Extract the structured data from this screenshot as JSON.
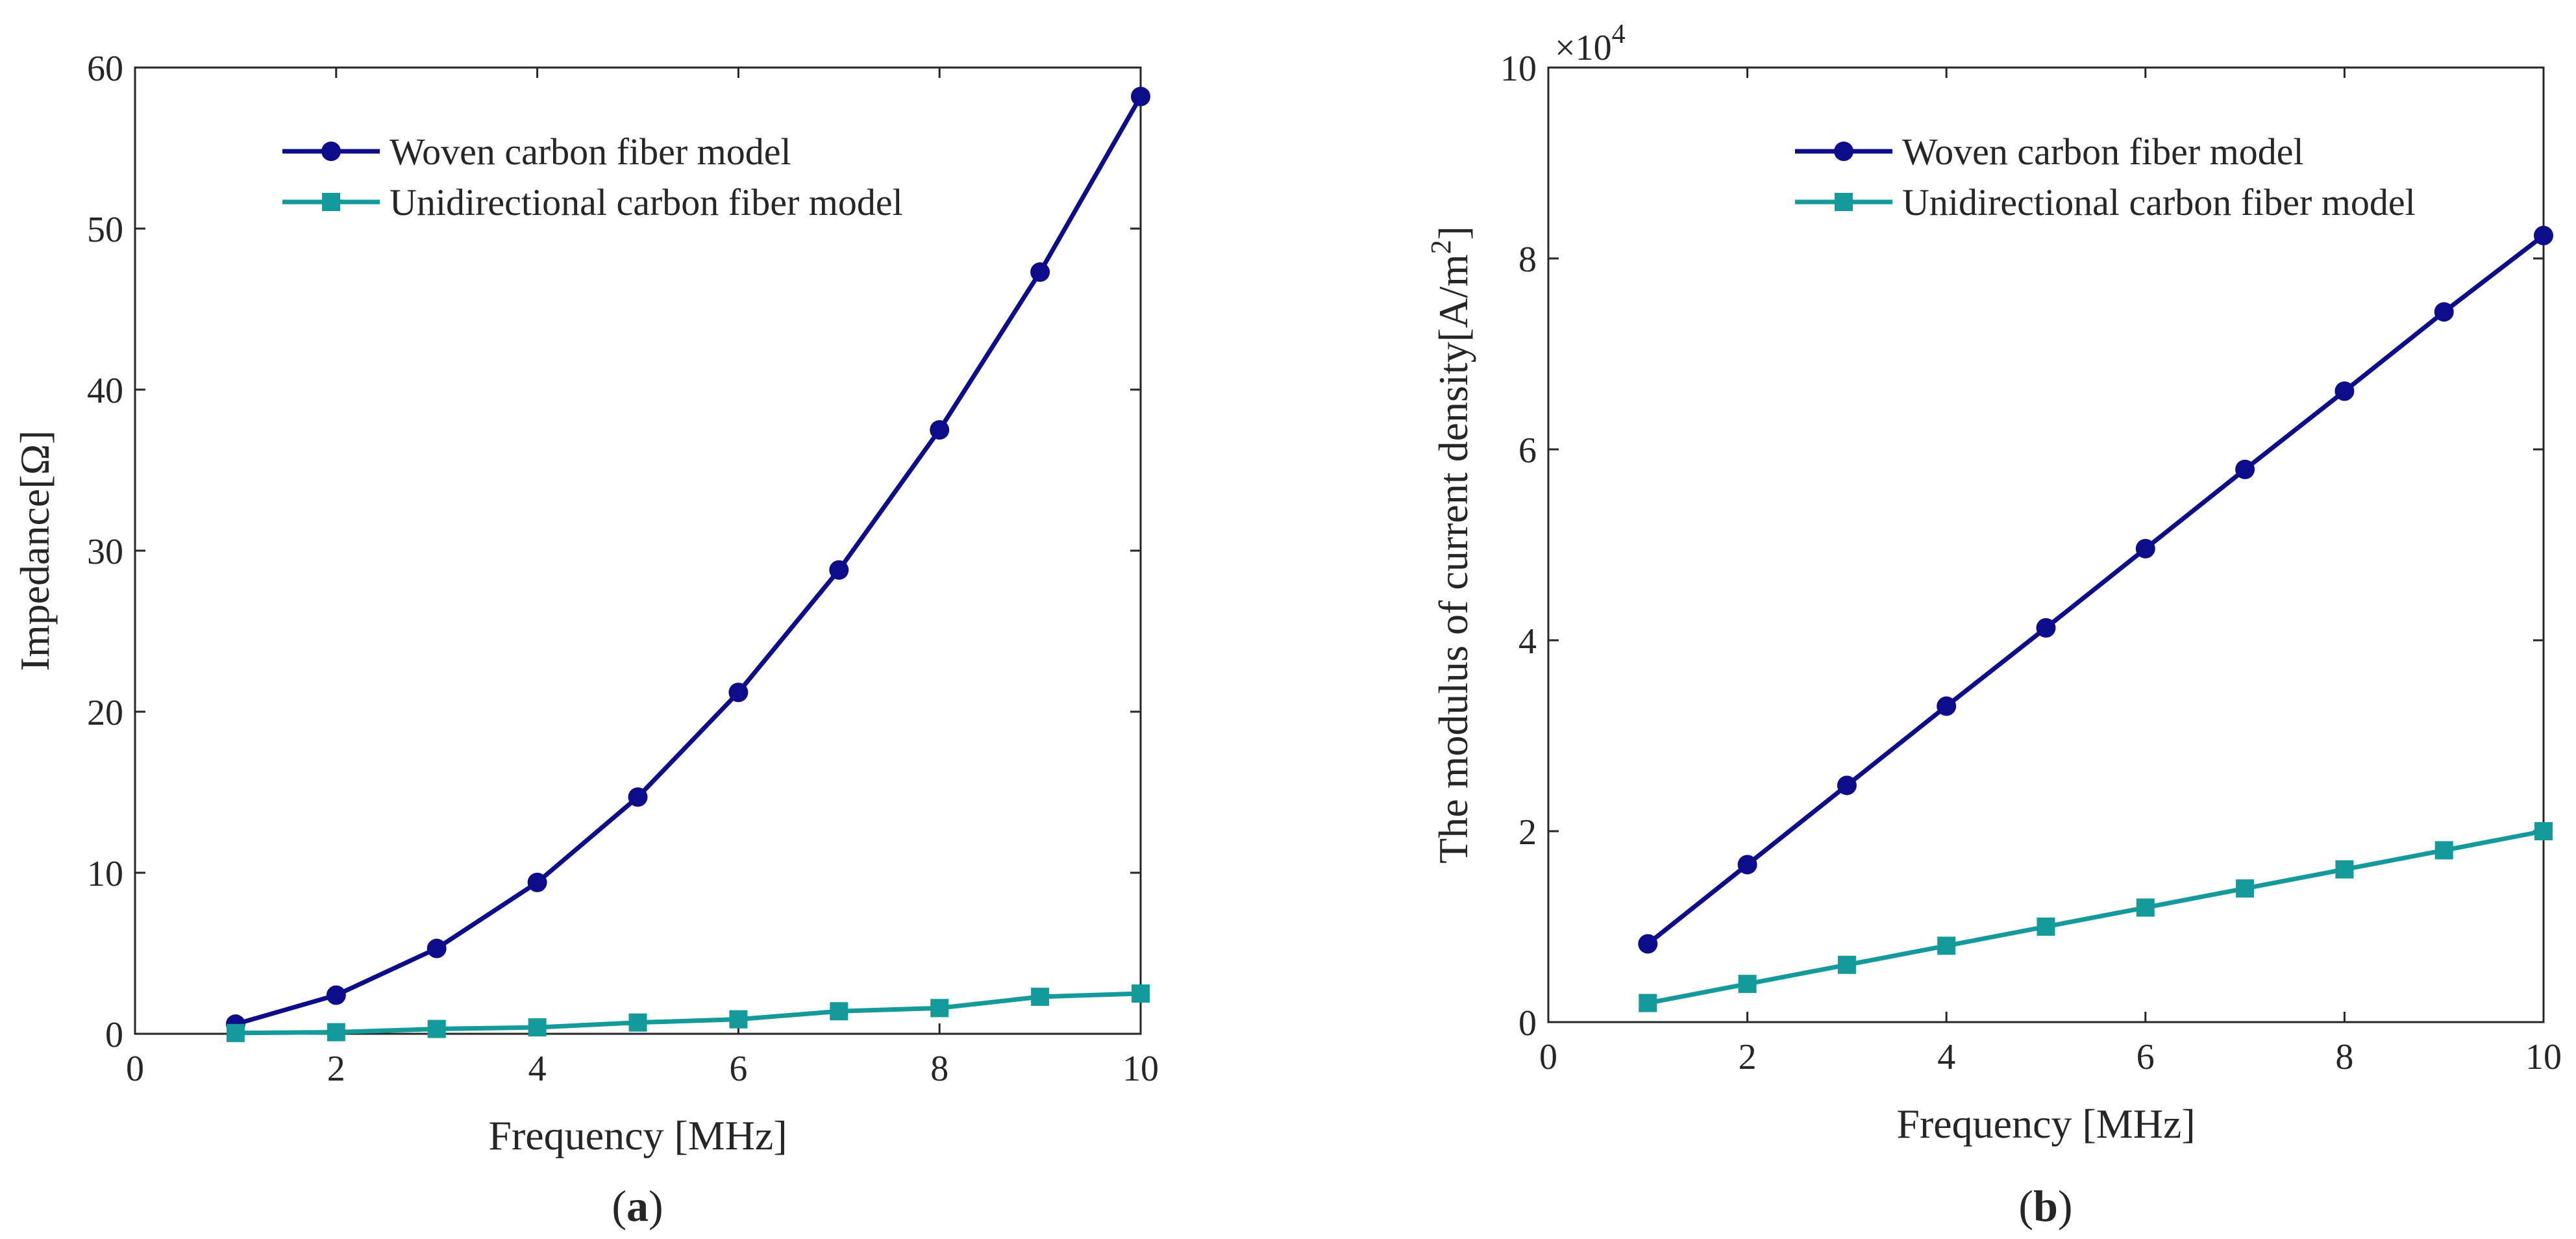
{
  "chart_data": [
    {
      "type": "line",
      "panel_label": {
        "open": "(",
        "letter": "a",
        "close": ")"
      },
      "xlabel": "Frequency [MHz]",
      "ylabel": "Impedance[Ω]",
      "xlim": [
        0,
        10
      ],
      "ylim": [
        0,
        60
      ],
      "xticks": [
        0,
        2,
        4,
        6,
        8,
        10
      ],
      "yticks": [
        0,
        10,
        20,
        30,
        40,
        50,
        60
      ],
      "legend_position": "top-center",
      "series": [
        {
          "name": "Woven carbon fiber model",
          "color": "#0d0d8c",
          "marker": "circle",
          "x": [
            1,
            2,
            3,
            4,
            5,
            6,
            7,
            8,
            9,
            10
          ],
          "values": [
            0.6,
            2.4,
            5.3,
            9.4,
            14.7,
            21.2,
            28.8,
            37.5,
            47.3,
            58.2
          ]
        },
        {
          "name": "Unidirectional carbon fiber model",
          "color": "#149a9a",
          "marker": "square",
          "x": [
            1,
            2,
            3,
            4,
            5,
            6,
            7,
            8,
            9,
            10
          ],
          "values": [
            0.05,
            0.1,
            0.3,
            0.4,
            0.7,
            0.9,
            1.4,
            1.6,
            2.3,
            2.5
          ]
        }
      ]
    },
    {
      "type": "line",
      "panel_label": {
        "open": "(",
        "letter": "b",
        "close": ")"
      },
      "xlabel": "Frequency [MHz]",
      "ylabel": "The modulus of current density[A/m",
      "ylabel_superscript": "2",
      "ylabel_suffix": "]",
      "exponent_base": "×10",
      "exponent_power": "4",
      "xlim": [
        0,
        10
      ],
      "ylim": [
        0,
        10
      ],
      "xticks": [
        0,
        2,
        4,
        6,
        8,
        10
      ],
      "yticks": [
        0,
        2,
        4,
        6,
        8,
        10
      ],
      "legend_position": "top-center",
      "series": [
        {
          "name": "Woven carbon fiber model",
          "color": "#0d0d8c",
          "marker": "circle",
          "x": [
            1,
            2,
            3,
            4,
            5,
            6,
            7,
            8,
            9,
            10
          ],
          "values": [
            0.82,
            1.65,
            2.48,
            3.31,
            4.13,
            4.96,
            5.79,
            6.61,
            7.44,
            8.24
          ]
        },
        {
          "name": "Unidirectional carbon fiber model",
          "color": "#149a9a",
          "marker": "square",
          "x": [
            1,
            2,
            3,
            4,
            5,
            6,
            7,
            8,
            9,
            10
          ],
          "values": [
            0.2,
            0.4,
            0.6,
            0.8,
            1.0,
            1.2,
            1.4,
            1.6,
            1.8,
            2.0
          ]
        }
      ]
    }
  ]
}
